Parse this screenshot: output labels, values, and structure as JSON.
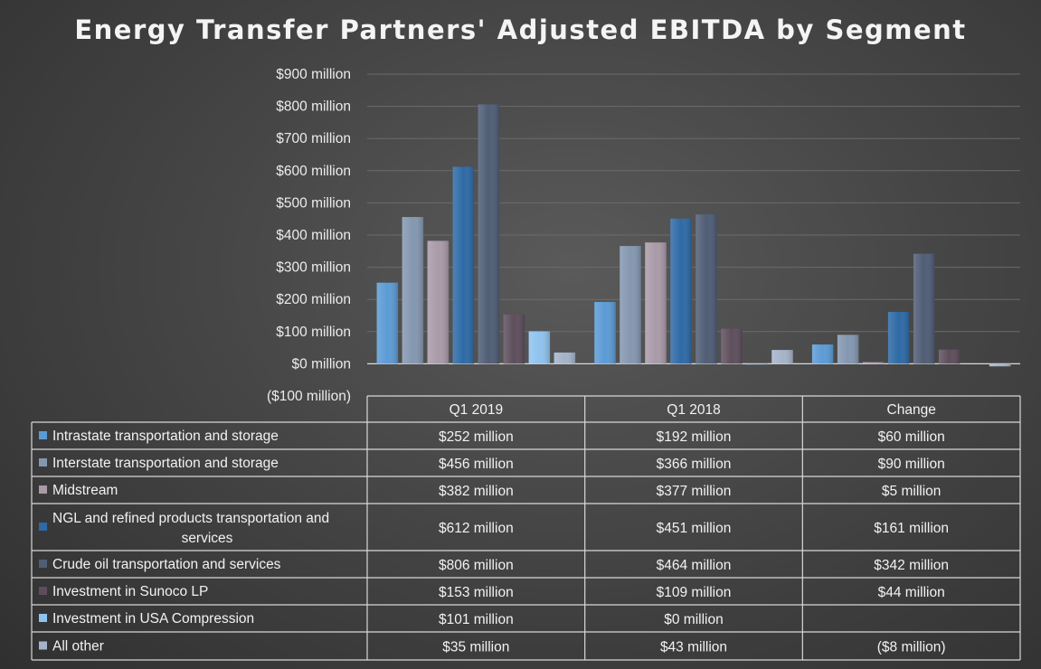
{
  "chart_data": {
    "type": "bar",
    "title": "Energy Transfer Partners' Adjusted EBITDA by Segment",
    "categories": [
      "Q1 2019",
      "Q1 2018",
      "Change"
    ],
    "ylim": [
      -100,
      900
    ],
    "y_ticks": [
      {
        "value": 900,
        "label": "$900 million"
      },
      {
        "value": 800,
        "label": "$800 million"
      },
      {
        "value": 700,
        "label": "$700 million"
      },
      {
        "value": 600,
        "label": "$600 million"
      },
      {
        "value": 500,
        "label": "$500 million"
      },
      {
        "value": 400,
        "label": "$400 million"
      },
      {
        "value": 300,
        "label": "$300 million"
      },
      {
        "value": 200,
        "label": "$200 million"
      },
      {
        "value": 100,
        "label": "$100 million"
      },
      {
        "value": 0,
        "label": "$0 million"
      },
      {
        "value": -100,
        "label": "($100 million)"
      }
    ],
    "grid": true,
    "legend": "data-table",
    "series": [
      {
        "name": "Intrastate transportation and storage",
        "color": "#5b9bd5",
        "values": [
          252,
          192,
          60
        ],
        "labels": [
          "$252 million",
          "$192 million",
          "$60 million"
        ]
      },
      {
        "name": "Interstate transportation and storage",
        "color": "#8497b0",
        "values": [
          456,
          366,
          90
        ],
        "labels": [
          "$456 million",
          "$366 million",
          "$90 million"
        ]
      },
      {
        "name": "Midstream",
        "color": "#a99aa8",
        "values": [
          382,
          377,
          5
        ],
        "labels": [
          "$382 million",
          "$377 million",
          "$5 million"
        ]
      },
      {
        "name": "NGL and refined products transportation and services",
        "color": "#2e6aa6",
        "values": [
          612,
          451,
          161
        ],
        "labels": [
          "$612 million",
          "$451 million",
          "$161 million"
        ]
      },
      {
        "name": "Crude oil transportation and services",
        "color": "#4f5d75",
        "values": [
          806,
          464,
          342
        ],
        "labels": [
          "$806 million",
          "$464 million",
          "$342 million"
        ]
      },
      {
        "name": "Investment in Sunoco LP",
        "color": "#5e4e5c",
        "values": [
          153,
          109,
          44
        ],
        "labels": [
          "$153 million",
          "$109 million",
          "$44 million"
        ]
      },
      {
        "name": "Investment in USA Compression",
        "color": "#8fc3ee",
        "values": [
          101,
          0,
          null
        ],
        "labels": [
          "$101 million",
          "$0 million",
          ""
        ]
      },
      {
        "name": "All other",
        "color": "#a5b3c9",
        "values": [
          35,
          43,
          -8
        ],
        "labels": [
          "$35 million",
          "$43 million",
          "($8 million)"
        ]
      }
    ]
  }
}
